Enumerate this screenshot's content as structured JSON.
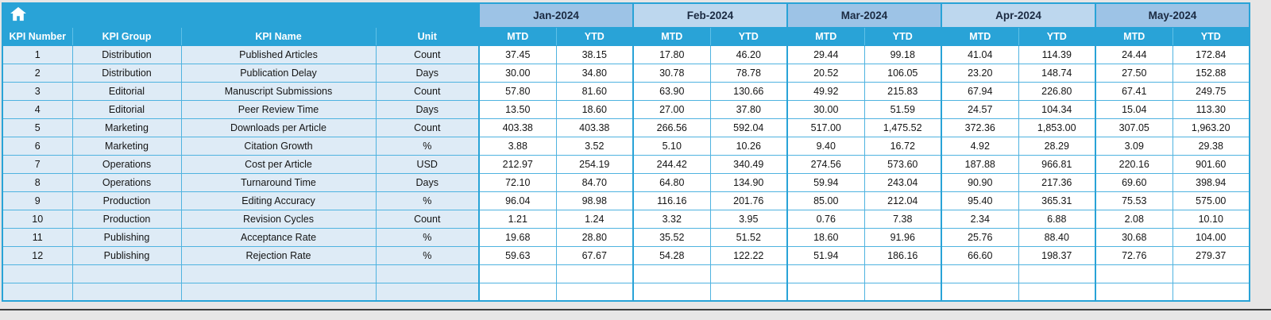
{
  "table": {
    "corner_icon": "home-icon",
    "months": [
      "Jan-2024",
      "Feb-2024",
      "Mar-2024",
      "Apr-2024",
      "May-2024"
    ],
    "sub_headers": [
      "MTD",
      "YTD"
    ],
    "left_headers": [
      "KPI Number",
      "KPI Group",
      "KPI Name",
      "Unit"
    ],
    "rows": [
      {
        "kpi_number": "1",
        "group": "Distribution",
        "name": "Published Articles",
        "unit": "Count",
        "values": [
          "37.45",
          "38.15",
          "17.80",
          "46.20",
          "29.44",
          "99.18",
          "41.04",
          "114.39",
          "24.44",
          "172.84"
        ]
      },
      {
        "kpi_number": "2",
        "group": "Distribution",
        "name": "Publication Delay",
        "unit": "Days",
        "values": [
          "30.00",
          "34.80",
          "30.78",
          "78.78",
          "20.52",
          "106.05",
          "23.20",
          "148.74",
          "27.50",
          "152.88"
        ]
      },
      {
        "kpi_number": "3",
        "group": "Editorial",
        "name": "Manuscript Submissions",
        "unit": "Count",
        "values": [
          "57.80",
          "81.60",
          "63.90",
          "130.66",
          "49.92",
          "215.83",
          "67.94",
          "226.80",
          "67.41",
          "249.75"
        ]
      },
      {
        "kpi_number": "4",
        "group": "Editorial",
        "name": "Peer Review Time",
        "unit": "Days",
        "values": [
          "13.50",
          "18.60",
          "27.00",
          "37.80",
          "30.00",
          "51.59",
          "24.57",
          "104.34",
          "15.04",
          "113.30"
        ]
      },
      {
        "kpi_number": "5",
        "group": "Marketing",
        "name": "Downloads per Article",
        "unit": "Count",
        "values": [
          "403.38",
          "403.38",
          "266.56",
          "592.04",
          "517.00",
          "1,475.52",
          "372.36",
          "1,853.00",
          "307.05",
          "1,963.20"
        ]
      },
      {
        "kpi_number": "6",
        "group": "Marketing",
        "name": "Citation Growth",
        "unit": "%",
        "values": [
          "3.88",
          "3.52",
          "5.10",
          "10.26",
          "9.40",
          "16.72",
          "4.92",
          "28.29",
          "3.09",
          "29.38"
        ]
      },
      {
        "kpi_number": "7",
        "group": "Operations",
        "name": "Cost per Article",
        "unit": "USD",
        "values": [
          "212.97",
          "254.19",
          "244.42",
          "340.49",
          "274.56",
          "573.60",
          "187.88",
          "966.81",
          "220.16",
          "901.60"
        ]
      },
      {
        "kpi_number": "8",
        "group": "Operations",
        "name": "Turnaround Time",
        "unit": "Days",
        "values": [
          "72.10",
          "84.70",
          "64.80",
          "134.90",
          "59.94",
          "243.04",
          "90.90",
          "217.36",
          "69.60",
          "398.94"
        ]
      },
      {
        "kpi_number": "9",
        "group": "Production",
        "name": "Editing Accuracy",
        "unit": "%",
        "values": [
          "96.04",
          "98.98",
          "116.16",
          "201.76",
          "85.00",
          "212.04",
          "95.40",
          "365.31",
          "75.53",
          "575.00"
        ]
      },
      {
        "kpi_number": "10",
        "group": "Production",
        "name": "Revision Cycles",
        "unit": "Count",
        "values": [
          "1.21",
          "1.24",
          "3.32",
          "3.95",
          "0.76",
          "7.38",
          "2.34",
          "6.88",
          "2.08",
          "10.10"
        ]
      },
      {
        "kpi_number": "11",
        "group": "Publishing",
        "name": "Acceptance Rate",
        "unit": "%",
        "values": [
          "19.68",
          "28.80",
          "35.52",
          "51.52",
          "18.60",
          "91.96",
          "25.76",
          "88.40",
          "30.68",
          "104.00"
        ]
      },
      {
        "kpi_number": "12",
        "group": "Publishing",
        "name": "Rejection Rate",
        "unit": "%",
        "values": [
          "59.63",
          "67.67",
          "54.28",
          "122.22",
          "51.94",
          "186.16",
          "66.60",
          "198.37",
          "72.76",
          "279.37"
        ]
      }
    ],
    "empty_rows": 2,
    "colors": {
      "accent_teal": "#29A3D7",
      "month_shade_a": "#9DC3E6",
      "month_shade_b": "#BDD7EE",
      "row_label_bg": "#DEEBF6",
      "grid_line": "#4FB3E0",
      "header_text": "#1B2A41"
    }
  }
}
